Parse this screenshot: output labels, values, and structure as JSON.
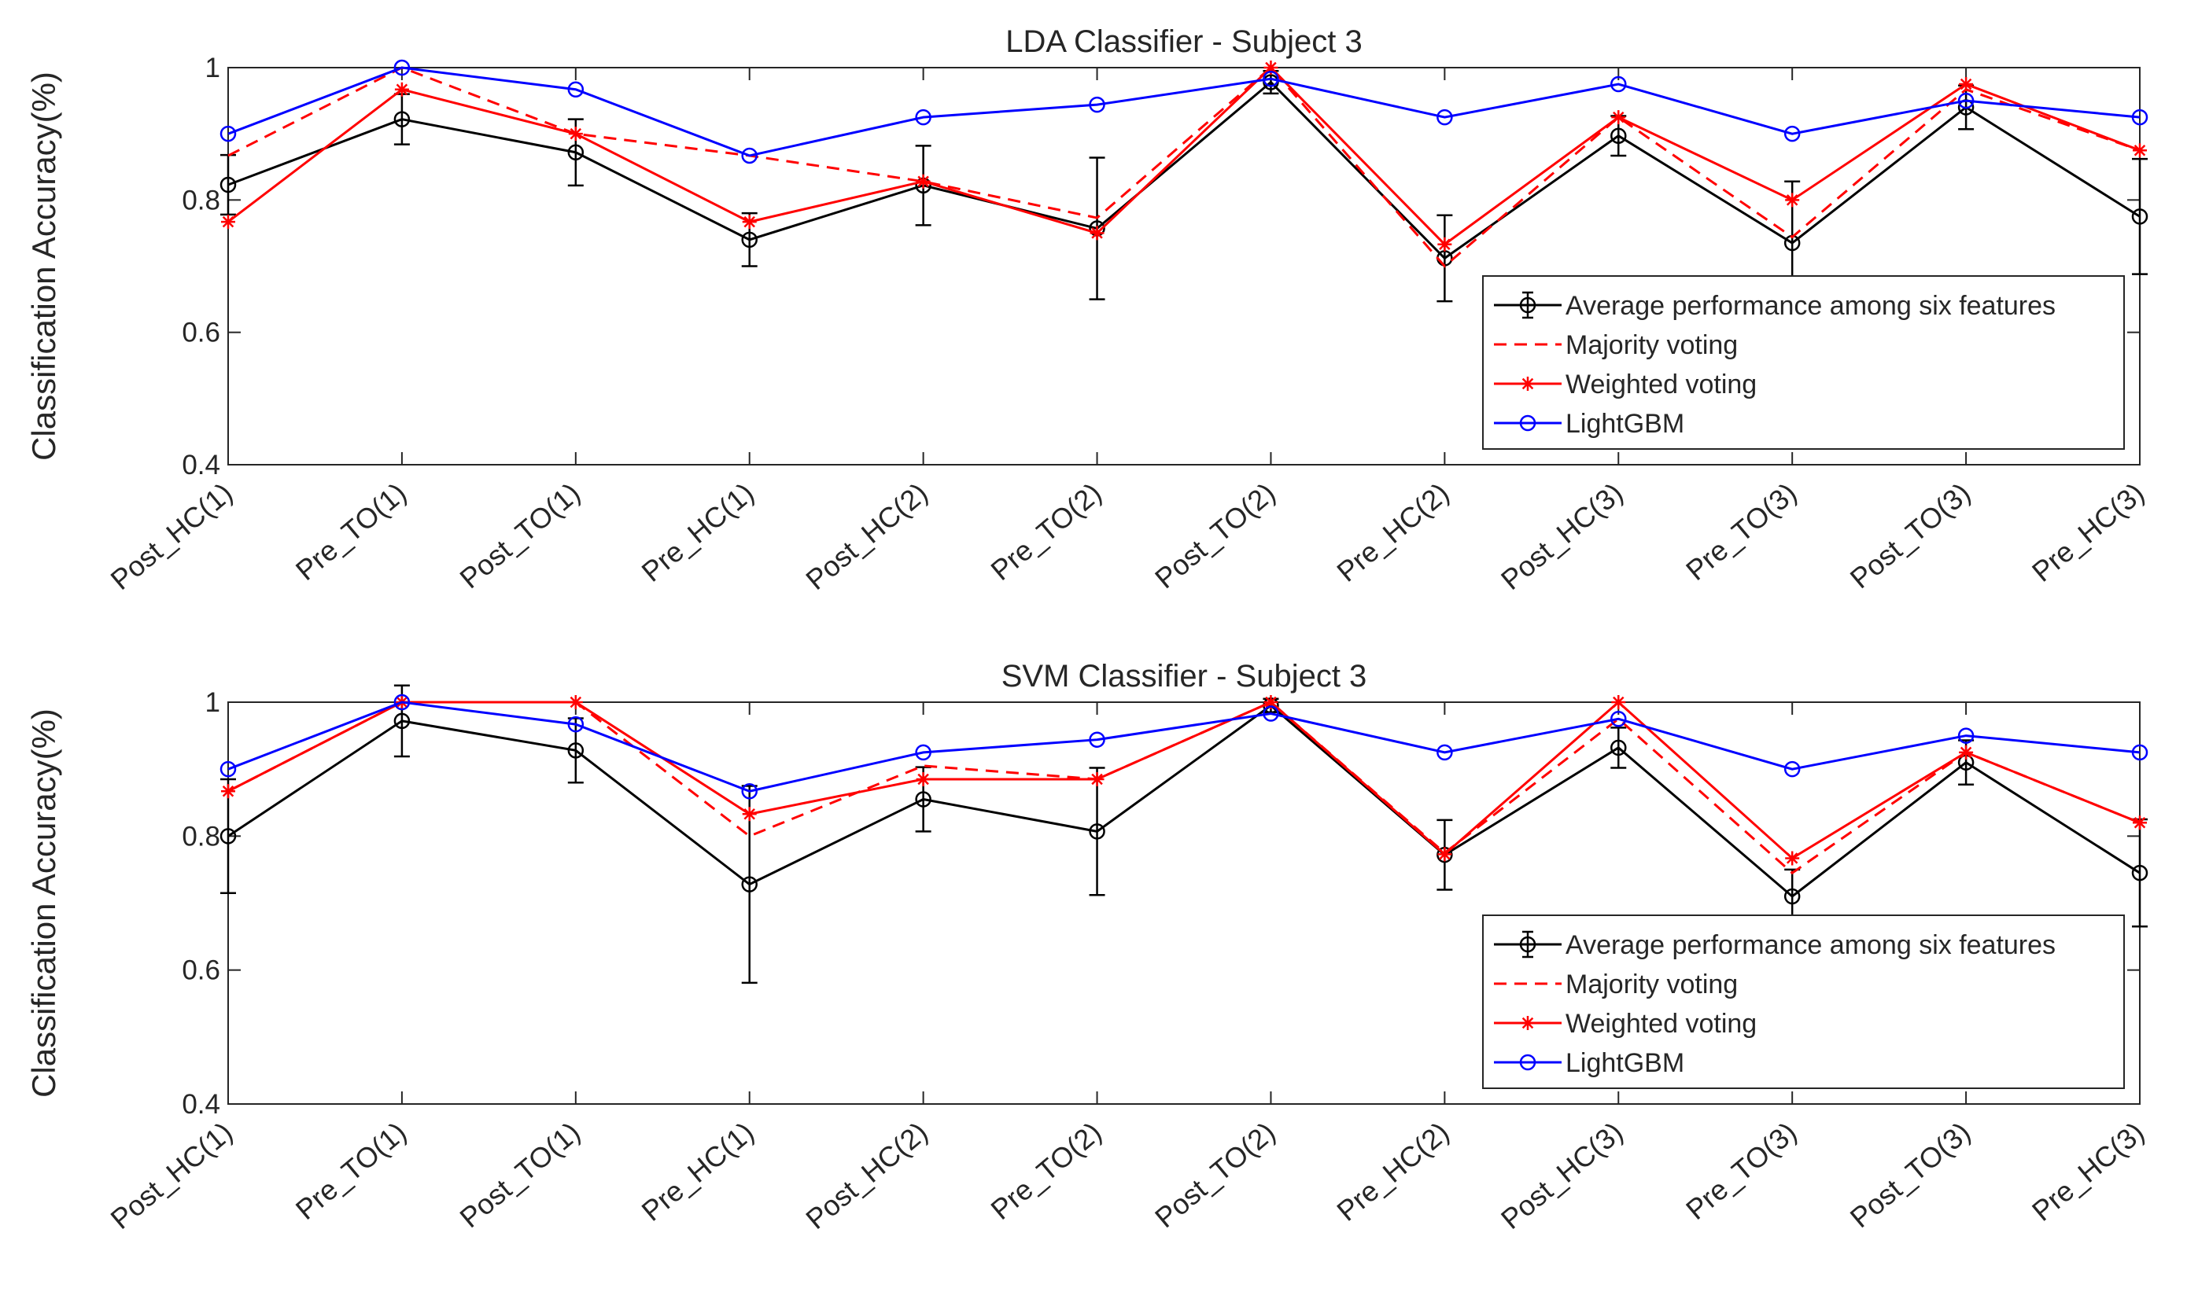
{
  "chart_data": [
    {
      "type": "line",
      "title": "LDA Classifier - Subject 3",
      "xlabel": "",
      "ylabel": "Classification Accuracy(%)",
      "ylim": [
        0.4,
        1.0
      ],
      "yticks": [
        "0.4",
        "0.6",
        "0.8",
        "1"
      ],
      "yticks_values": [
        0.4,
        0.6,
        0.8,
        1.0
      ],
      "categories": [
        "Post_HC(1)",
        "Pre_TO(1)",
        "Post_TO(1)",
        "Pre_HC(1)",
        "Post_HC(2)",
        "Pre_TO(2)",
        "Post_TO(2)",
        "Pre_HC(2)",
        "Post_HC(3)",
        "Pre_TO(3)",
        "Post_TO(3)",
        "Pre_HC(3)"
      ],
      "legend_position": "bottom-right",
      "series": [
        {
          "name": "Average performance among six features",
          "color": "#000000",
          "style": "solid",
          "marker": "circle",
          "values": [
            0.823,
            0.922,
            0.872,
            0.74,
            0.822,
            0.757,
            0.978,
            0.712,
            0.897,
            0.735,
            0.94,
            0.775
          ],
          "error": [
            0.045,
            0.038,
            0.05,
            0.04,
            0.06,
            0.107,
            0.017,
            0.065,
            0.03,
            0.093,
            0.033,
            0.087
          ]
        },
        {
          "name": "Majority voting",
          "color": "#ff0000",
          "style": "dashed",
          "marker": "none",
          "values": [
            0.867,
            1.0,
            0.9,
            0.867,
            0.828,
            0.773,
            1.0,
            0.7,
            0.925,
            0.744,
            0.967,
            0.875
          ]
        },
        {
          "name": "Weighted voting",
          "color": "#ff0000",
          "style": "solid",
          "marker": "star",
          "values": [
            0.767,
            0.967,
            0.9,
            0.767,
            0.828,
            0.75,
            1.0,
            0.733,
            0.925,
            0.8,
            0.975,
            0.875
          ]
        },
        {
          "name": "LightGBM",
          "color": "#0000ff",
          "style": "solid",
          "marker": "circle",
          "values": [
            0.9,
            1.0,
            0.967,
            0.867,
            0.925,
            0.944,
            0.983,
            0.925,
            0.975,
            0.9,
            0.95,
            0.925
          ]
        }
      ]
    },
    {
      "type": "line",
      "title": "SVM Classifier - Subject 3",
      "xlabel": "",
      "ylabel": "Classification Accuracy(%)",
      "ylim": [
        0.4,
        1.0
      ],
      "yticks": [
        "0.4",
        "0.6",
        "0.8",
        "1"
      ],
      "yticks_values": [
        0.4,
        0.6,
        0.8,
        1.0
      ],
      "categories": [
        "Post_HC(1)",
        "Pre_TO(1)",
        "Post_TO(1)",
        "Pre_HC(1)",
        "Post_HC(2)",
        "Pre_TO(2)",
        "Post_TO(2)",
        "Pre_HC(2)",
        "Post_HC(3)",
        "Pre_TO(3)",
        "Post_TO(3)",
        "Pre_HC(3)"
      ],
      "legend_position": "bottom-right",
      "series": [
        {
          "name": "Average performance among six features",
          "color": "#000000",
          "style": "solid",
          "marker": "circle",
          "values": [
            0.8,
            0.972,
            0.928,
            0.728,
            0.855,
            0.807,
            0.995,
            0.772,
            0.932,
            0.71,
            0.91,
            0.745
          ],
          "error": [
            0.085,
            0.053,
            0.048,
            0.147,
            0.048,
            0.095,
            0.01,
            0.052,
            0.03,
            0.04,
            0.033,
            0.08
          ]
        },
        {
          "name": "Majority voting",
          "color": "#ff0000",
          "style": "dashed",
          "marker": "none",
          "values": [
            0.867,
            1.0,
            1.0,
            0.8,
            0.905,
            0.885,
            1.0,
            0.775,
            0.975,
            0.745,
            0.925,
            0.82
          ]
        },
        {
          "name": "Weighted voting",
          "color": "#ff0000",
          "style": "solid",
          "marker": "star",
          "values": [
            0.867,
            1.0,
            1.0,
            0.833,
            0.885,
            0.885,
            1.0,
            0.773,
            1.0,
            0.767,
            0.925,
            0.82
          ]
        },
        {
          "name": "LightGBM",
          "color": "#0000ff",
          "style": "solid",
          "marker": "circle",
          "values": [
            0.9,
            1.0,
            0.967,
            0.867,
            0.925,
            0.944,
            0.983,
            0.925,
            0.975,
            0.9,
            0.95,
            0.925
          ]
        }
      ]
    }
  ]
}
